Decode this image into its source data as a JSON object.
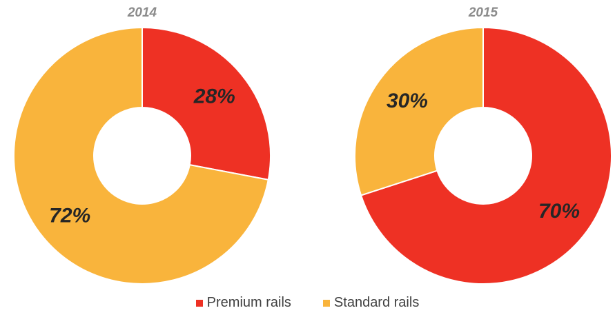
{
  "chart_data": [
    {
      "type": "pie",
      "title": "2014",
      "categories": [
        "Premium rails",
        "Standard rails"
      ],
      "values": [
        28,
        72
      ],
      "labels": [
        "28%",
        "72%"
      ],
      "colors": [
        "#ee3124",
        "#f9b43c"
      ]
    },
    {
      "type": "pie",
      "title": "2015",
      "categories": [
        "Premium rails",
        "Standard rails"
      ],
      "values": [
        70,
        30
      ],
      "labels": [
        "70%",
        "30%"
      ],
      "colors": [
        "#ee3124",
        "#f9b43c"
      ]
    }
  ],
  "legend": {
    "items": [
      {
        "label": "Premium rails",
        "color": "#ee3124"
      },
      {
        "label": "Standard rails",
        "color": "#f9b43c"
      }
    ]
  }
}
